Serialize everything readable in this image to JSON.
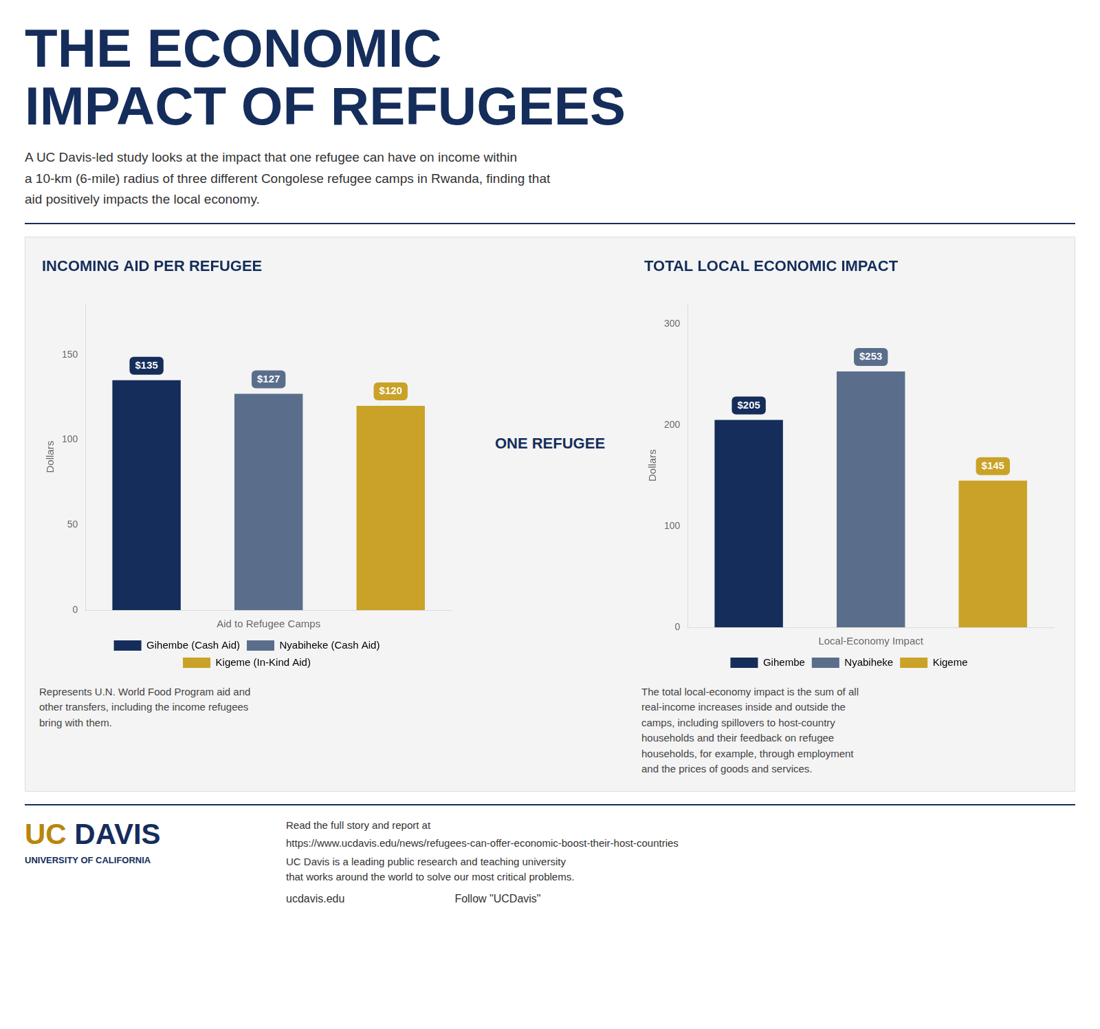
{
  "title": "THE ECONOMIC\nIMPACT OF REFUGEES",
  "subtitle": "A UC Davis-led study looks at the impact that one refugee can have on income within\na 10-km (6-mile) radius of three different Congolese refugee camps in Rwanda, finding that\naid positively impacts the local economy.",
  "annotations": [
    "ONE REFUGEE",
    "UC",
    "DAVIS",
    "UNIVERSITY OF CALIFORNIA",
    "Read the full story and report at",
    "https://www.ucdavis.edu/news/refugees-can-offer-economic-boost-their-host-countries",
    "UC Davis is a leading public research and teaching university\nthat works around the world to solve our most critical problems.",
    "ucdavis.edu",
    "Follow \"UCDavis\""
  ],
  "chart_data": [
    {
      "type": "bar",
      "title": "INCOMING AID PER REFUGEE",
      "categories": [
        "Gihembe (Cash Aid)",
        "Nyabiheke (Cash Aid)",
        "Kigeme (In-Kind Aid)"
      ],
      "values": [
        135,
        127,
        120
      ],
      "value_labels": [
        "$135",
        "$127",
        "$120"
      ],
      "colors": [
        "#152d5b",
        "#5a6e8c",
        "#c9a227"
      ],
      "x_label": "Aid to Refugee Camps",
      "y_label": "Dollars",
      "ylim": [
        0,
        180
      ],
      "yticks": [
        0,
        50,
        100,
        150
      ],
      "grid": false,
      "legend": "bottom",
      "data_labels": true,
      "tick_labels": "y",
      "annotations": [
        "Represents U.N. World Food Program aid and\nother transfers, including the income refugees\nbring with them."
      ]
    },
    {
      "type": "bar",
      "title": "TOTAL LOCAL ECONOMIC IMPACT",
      "categories": [
        "Gihembe",
        "Nyabiheke",
        "Kigeme"
      ],
      "values": [
        205,
        253,
        145
      ],
      "value_labels": [
        "$205",
        "$253",
        "$145"
      ],
      "colors": [
        "#152d5b",
        "#5a6e8c",
        "#c9a227"
      ],
      "x_label": "Local-Economy Impact",
      "y_label": "Dollars",
      "ylim": [
        0,
        320
      ],
      "yticks": [
        0,
        100,
        200,
        300
      ],
      "grid": false,
      "legend": "bottom",
      "data_labels": true,
      "tick_labels": "y",
      "annotations": [
        "The total local-economy impact is the sum of all\nreal-income increases inside and outside the\ncamps, including spillovers to host-country\nhouseholds and their feedback on refugee\nhouseholds, for example, through employment\nand the prices of goods and services."
      ]
    }
  ]
}
